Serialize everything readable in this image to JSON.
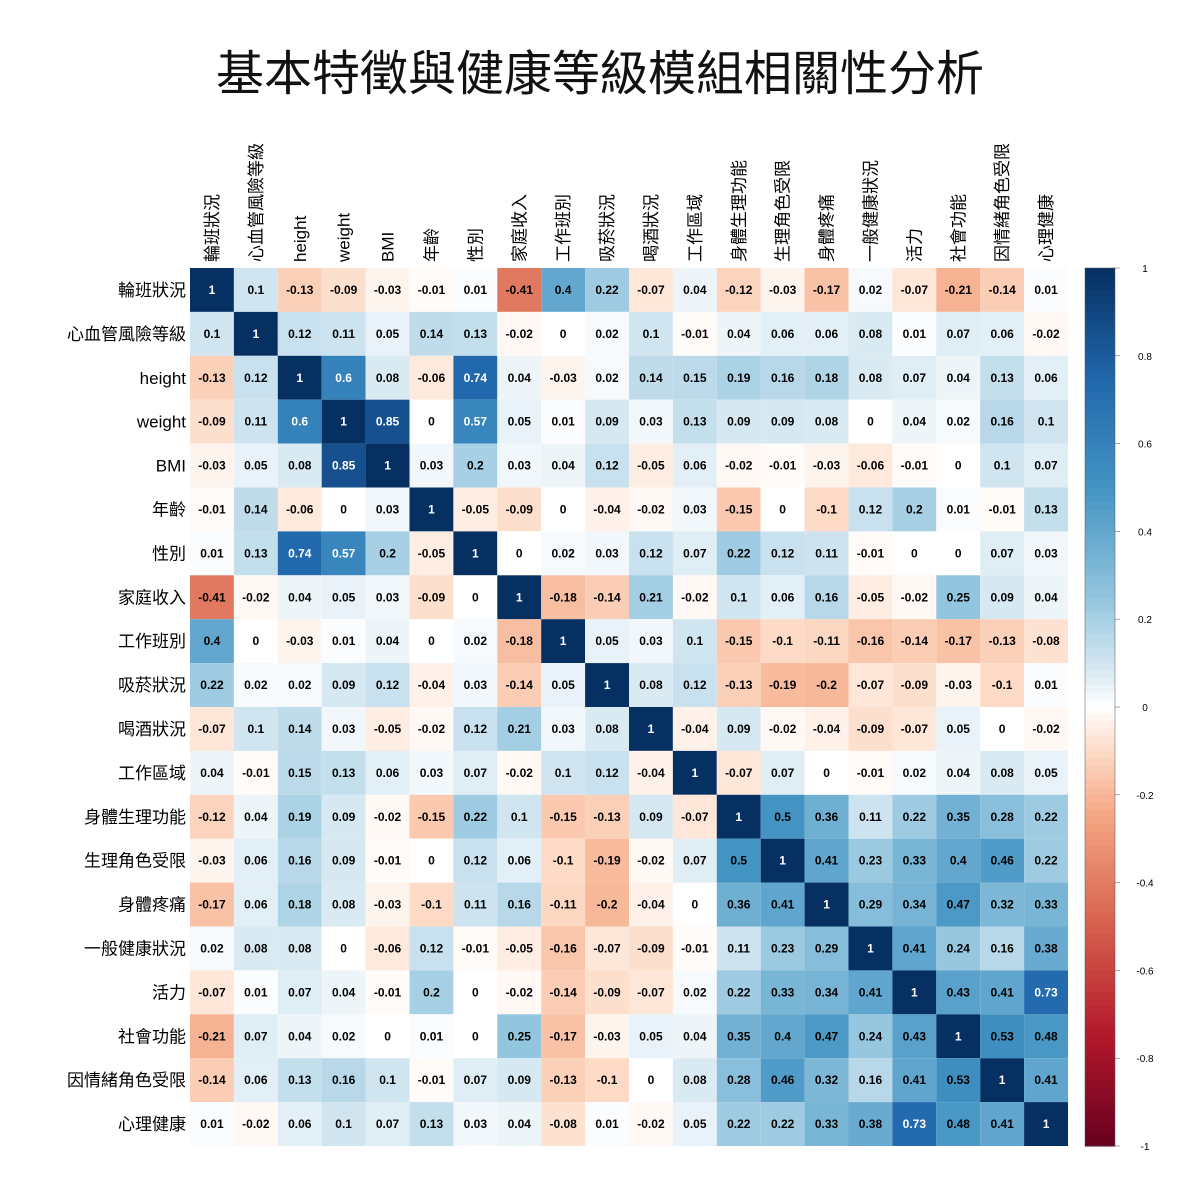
{
  "title": "基本特徵與健康等級模組相關性分析",
  "chart_data": {
    "type": "heatmap",
    "title": "基本特徵與健康等級模組相關性分析",
    "labels": [
      "輪班狀況",
      "心血管風險等級",
      "height",
      "weight",
      "BMI",
      "年齡",
      "性別",
      "家庭收入",
      "工作班別",
      "吸菸狀況",
      "喝酒狀況",
      "工作區域",
      "身體生理功能",
      "生理角色受限",
      "身體疼痛",
      "一般健康狀況",
      "活力",
      "社會功能",
      "因情緒角色受限",
      "心理健康"
    ],
    "matrix": [
      [
        1,
        0.1,
        -0.13,
        -0.09,
        -0.03,
        -0.01,
        0.01,
        -0.41,
        0.4,
        0.22,
        -0.07,
        0.04,
        -0.12,
        -0.03,
        -0.17,
        0.02,
        -0.07,
        -0.21,
        -0.14,
        0.01
      ],
      [
        0.1,
        1,
        0.12,
        0.11,
        0.05,
        0.14,
        0.13,
        -0.02,
        0,
        0.02,
        0.1,
        -0.01,
        0.04,
        0.06,
        0.06,
        0.08,
        0.01,
        0.07,
        0.06,
        -0.02
      ],
      [
        -0.13,
        0.12,
        1,
        0.6,
        0.08,
        -0.06,
        0.74,
        0.04,
        -0.03,
        0.02,
        0.14,
        0.15,
        0.19,
        0.16,
        0.18,
        0.08,
        0.07,
        0.04,
        0.13,
        0.06
      ],
      [
        -0.09,
        0.11,
        0.6,
        1,
        0.85,
        0,
        0.57,
        0.05,
        0.01,
        0.09,
        0.03,
        0.13,
        0.09,
        0.09,
        0.08,
        0,
        0.04,
        0.02,
        0.16,
        0.1
      ],
      [
        -0.03,
        0.05,
        0.08,
        0.85,
        1,
        0.03,
        0.2,
        0.03,
        0.04,
        0.12,
        -0.05,
        0.06,
        -0.02,
        -0.01,
        -0.03,
        -0.06,
        -0.01,
        0,
        0.1,
        0.07
      ],
      [
        -0.01,
        0.14,
        -0.06,
        0,
        0.03,
        1,
        -0.05,
        -0.09,
        0,
        -0.04,
        -0.02,
        0.03,
        -0.15,
        0,
        -0.1,
        0.12,
        0.2,
        0.01,
        -0.01,
        0.13
      ],
      [
        0.01,
        0.13,
        0.74,
        0.57,
        0.2,
        -0.05,
        1,
        0,
        0.02,
        0.03,
        0.12,
        0.07,
        0.22,
        0.12,
        0.11,
        -0.01,
        0,
        0,
        0.07,
        0.03
      ],
      [
        -0.41,
        -0.02,
        0.04,
        0.05,
        0.03,
        -0.09,
        0,
        1,
        -0.18,
        -0.14,
        0.21,
        -0.02,
        0.1,
        0.06,
        0.16,
        -0.05,
        -0.02,
        0.25,
        0.09,
        0.04
      ],
      [
        0.4,
        0,
        -0.03,
        0.01,
        0.04,
        0,
        0.02,
        -0.18,
        1,
        0.05,
        0.03,
        0.1,
        -0.15,
        -0.1,
        -0.11,
        -0.16,
        -0.14,
        -0.17,
        -0.13,
        -0.08
      ],
      [
        0.22,
        0.02,
        0.02,
        0.09,
        0.12,
        -0.04,
        0.03,
        -0.14,
        0.05,
        1,
        0.08,
        0.12,
        -0.13,
        -0.19,
        -0.2,
        -0.07,
        -0.09,
        -0.03,
        -0.1,
        0.01
      ],
      [
        -0.07,
        0.1,
        0.14,
        0.03,
        -0.05,
        -0.02,
        0.12,
        0.21,
        0.03,
        0.08,
        1,
        -0.04,
        0.09,
        -0.02,
        -0.04,
        -0.09,
        -0.07,
        0.05,
        0,
        -0.02
      ],
      [
        0.04,
        -0.01,
        0.15,
        0.13,
        0.06,
        0.03,
        0.07,
        -0.02,
        0.1,
        0.12,
        -0.04,
        1,
        -0.07,
        0.07,
        0,
        -0.01,
        0.02,
        0.04,
        0.08,
        0.05
      ],
      [
        -0.12,
        0.04,
        0.19,
        0.09,
        -0.02,
        -0.15,
        0.22,
        0.1,
        -0.15,
        -0.13,
        0.09,
        -0.07,
        1,
        0.5,
        0.36,
        0.11,
        0.22,
        0.35,
        0.28,
        0.22
      ],
      [
        -0.03,
        0.06,
        0.16,
        0.09,
        -0.01,
        0,
        0.12,
        0.06,
        -0.1,
        -0.19,
        -0.02,
        0.07,
        0.5,
        1,
        0.41,
        0.23,
        0.33,
        0.4,
        0.46,
        0.22
      ],
      [
        -0.17,
        0.06,
        0.18,
        0.08,
        -0.03,
        -0.1,
        0.11,
        0.16,
        -0.11,
        -0.2,
        -0.04,
        0,
        0.36,
        0.41,
        1,
        0.29,
        0.34,
        0.47,
        0.32,
        0.33
      ],
      [
        0.02,
        0.08,
        0.08,
        0,
        -0.06,
        0.12,
        -0.01,
        -0.05,
        -0.16,
        -0.07,
        -0.09,
        -0.01,
        0.11,
        0.23,
        0.29,
        1,
        0.41,
        0.24,
        0.16,
        0.38
      ],
      [
        -0.07,
        0.01,
        0.07,
        0.04,
        -0.01,
        0.2,
        0,
        -0.02,
        -0.14,
        -0.09,
        -0.07,
        0.02,
        0.22,
        0.33,
        0.34,
        0.41,
        1,
        0.43,
        0.41,
        0.73
      ],
      [
        -0.21,
        0.07,
        0.04,
        0.02,
        0,
        0.01,
        0,
        0.25,
        -0.17,
        -0.03,
        0.05,
        0.04,
        0.35,
        0.4,
        0.47,
        0.24,
        0.43,
        1,
        0.53,
        0.48
      ],
      [
        -0.14,
        0.06,
        0.13,
        0.16,
        0.1,
        -0.01,
        0.07,
        0.09,
        -0.13,
        -0.1,
        0,
        0.08,
        0.28,
        0.46,
        0.32,
        0.16,
        0.41,
        0.53,
        1,
        0.41
      ],
      [
        0.01,
        -0.02,
        0.06,
        0.1,
        0.07,
        0.13,
        0.03,
        0.04,
        -0.08,
        0.01,
        -0.02,
        0.05,
        0.22,
        0.22,
        0.33,
        0.38,
        0.73,
        0.48,
        0.41,
        1
      ]
    ],
    "colorbar": {
      "range": [
        -1,
        1
      ],
      "ticks": [
        "1",
        "0.8",
        "0.6",
        "0.4",
        "0.2",
        "0",
        "-0.2",
        "-0.4",
        "-0.6",
        "-0.8",
        "-1"
      ]
    },
    "colors": {
      "negative": "#67001f",
      "neutral": "#ffffff",
      "positive": "#053061"
    }
  }
}
